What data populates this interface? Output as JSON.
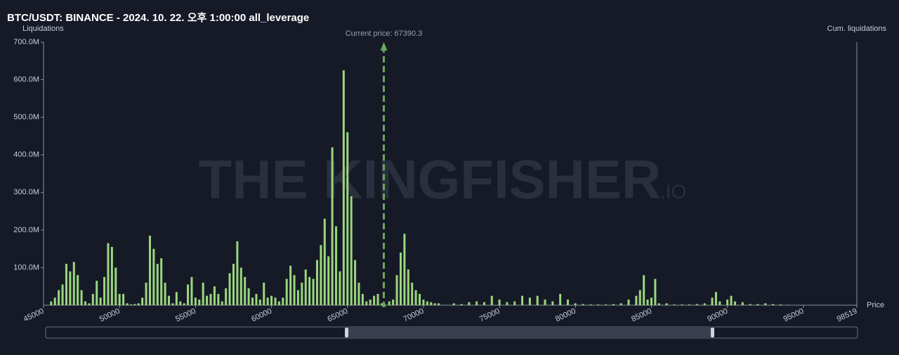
{
  "chart_data": {
    "type": "bar",
    "title": "BTC/USDT: BINANCE - 2024. 10. 22. 오후 1:00:00 all_leverage",
    "y_label": "Liquidations",
    "y2_label": "Cum. liquidations",
    "x_label": "Price",
    "watermark": "THE KINGFISHER",
    "watermark_suffix": ".IO",
    "annotation": {
      "text": "Current price: 67390.3",
      "x": 67390.3
    },
    "color": "#9bd67c",
    "xlim": [
      45000,
      98519
    ],
    "xticks": [
      45000,
      50000,
      55000,
      60000,
      65000,
      70000,
      75000,
      80000,
      85000,
      90000,
      95000,
      98519
    ],
    "ylim": [
      0,
      700
    ],
    "yticks": [
      {
        "value": 100,
        "label": "100.0M"
      },
      {
        "value": 200,
        "label": "200.0M"
      },
      {
        "value": 300,
        "label": "300.0M"
      },
      {
        "value": 400,
        "label": "400.0M"
      },
      {
        "value": 500,
        "label": "500.0M"
      },
      {
        "value": 600,
        "label": "600.0M"
      },
      {
        "value": 700,
        "label": "700.0M"
      }
    ],
    "x": [
      45500,
      45750,
      46000,
      46250,
      46500,
      46750,
      47000,
      47250,
      47500,
      47750,
      48000,
      48250,
      48500,
      48750,
      49000,
      49250,
      49500,
      49750,
      50000,
      50250,
      50500,
      50750,
      51000,
      51250,
      51500,
      51750,
      52000,
      52250,
      52500,
      52750,
      53000,
      53250,
      53500,
      53750,
      54000,
      54250,
      54500,
      54750,
      55000,
      55250,
      55500,
      55750,
      56000,
      56250,
      56500,
      56750,
      57000,
      57250,
      57500,
      57750,
      58000,
      58250,
      58500,
      58750,
      59000,
      59250,
      59500,
      59750,
      60000,
      60250,
      60500,
      60750,
      61000,
      61250,
      61500,
      61750,
      62000,
      62250,
      62500,
      62750,
      63000,
      63250,
      63500,
      63750,
      64000,
      64250,
      64500,
      64750,
      65000,
      65250,
      65500,
      65750,
      66000,
      66250,
      66500,
      66750,
      67000,
      67250,
      67750,
      68000,
      68250,
      68500,
      68750,
      69000,
      69250,
      69500,
      69750,
      70000,
      70250,
      70500,
      70750,
      71000,
      72000,
      72500,
      73000,
      73500,
      74000,
      74500,
      75000,
      75500,
      76000,
      76500,
      77000,
      77500,
      78000,
      78500,
      79000,
      79500,
      80000,
      80500,
      81000,
      81500,
      82000,
      82500,
      83000,
      83500,
      84000,
      84250,
      84500,
      84750,
      85000,
      85250,
      85500,
      86000,
      86500,
      87000,
      87500,
      88000,
      88500,
      89000,
      89250,
      89500,
      90000,
      90250,
      90500,
      91000,
      91500,
      92000,
      92500,
      93000,
      93500,
      94000
    ],
    "values": [
      10,
      20,
      40,
      55,
      110,
      90,
      115,
      80,
      40,
      10,
      5,
      30,
      65,
      20,
      75,
      165,
      155,
      100,
      30,
      30,
      5,
      2,
      3,
      5,
      20,
      60,
      185,
      150,
      110,
      125,
      60,
      25,
      5,
      35,
      10,
      5,
      55,
      75,
      20,
      15,
      60,
      25,
      30,
      50,
      30,
      10,
      45,
      85,
      110,
      170,
      100,
      75,
      45,
      20,
      30,
      15,
      60,
      20,
      25,
      20,
      10,
      20,
      70,
      105,
      80,
      40,
      60,
      95,
      75,
      70,
      120,
      160,
      230,
      130,
      420,
      210,
      90,
      625,
      460,
      290,
      120,
      60,
      30,
      10,
      15,
      25,
      30,
      5,
      10,
      15,
      80,
      140,
      190,
      95,
      60,
      40,
      30,
      15,
      10,
      8,
      5,
      5,
      5,
      3,
      8,
      10,
      8,
      25,
      15,
      8,
      10,
      25,
      20,
      25,
      15,
      10,
      30,
      15,
      5,
      3,
      2,
      2,
      2,
      3,
      5,
      15,
      25,
      40,
      80,
      15,
      20,
      70,
      5,
      5,
      2,
      2,
      2,
      3,
      5,
      20,
      35,
      10,
      15,
      25,
      10,
      8,
      3,
      3,
      5,
      3,
      2,
      1
    ]
  }
}
